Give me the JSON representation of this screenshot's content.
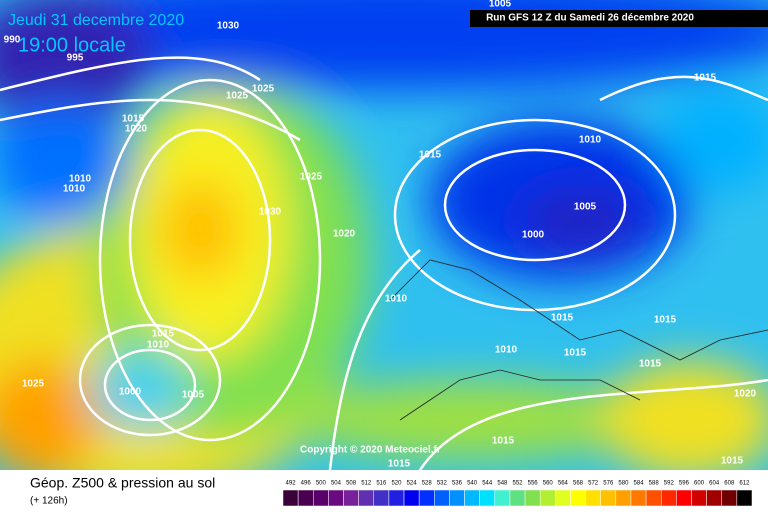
{
  "header": {
    "date": "Jeudi 31 decembre 2020",
    "time": "19:00 locale",
    "run": "Run GFS 12 Z du Samedi 26 décembre 2020",
    "copyright": "Copyright © 2020 Meteociel.fr"
  },
  "footer": {
    "title": "Géop. Z500 & pression au sol",
    "lead": "(+ 126h)"
  },
  "isobar_labels": [
    1005,
    1030,
    995,
    1025,
    1025,
    1015,
    1020,
    1010,
    1010,
    1015,
    1025,
    1030,
    1020,
    1010,
    1005,
    1000,
    1015,
    1010,
    1015,
    1015,
    1010,
    1015,
    1015,
    1020,
    1015,
    1010,
    1000,
    1005,
    1025,
    1015,
    1015,
    1015,
    990
  ],
  "legend": {
    "values": [
      492,
      496,
      500,
      504,
      508,
      512,
      516,
      520,
      524,
      528,
      532,
      536,
      540,
      544,
      548,
      552,
      556,
      560,
      564,
      568,
      572,
      576,
      580,
      584,
      588,
      592,
      596,
      600,
      604,
      608,
      612
    ],
    "colors": [
      "#3a0038",
      "#4a0050",
      "#5a0068",
      "#6a0a80",
      "#781f9a",
      "#6030b0",
      "#4030c8",
      "#2020e0",
      "#0000f0",
      "#0030ff",
      "#0060ff",
      "#0090ff",
      "#00b8ff",
      "#00e0ff",
      "#40f0d0",
      "#60e080",
      "#80e050",
      "#b0f030",
      "#e0ff20",
      "#ffff00",
      "#ffe000",
      "#ffc000",
      "#ffa000",
      "#ff7800",
      "#ff5000",
      "#ff2800",
      "#ff0000",
      "#d00000",
      "#a00000",
      "#700000",
      "#000000"
    ]
  }
}
